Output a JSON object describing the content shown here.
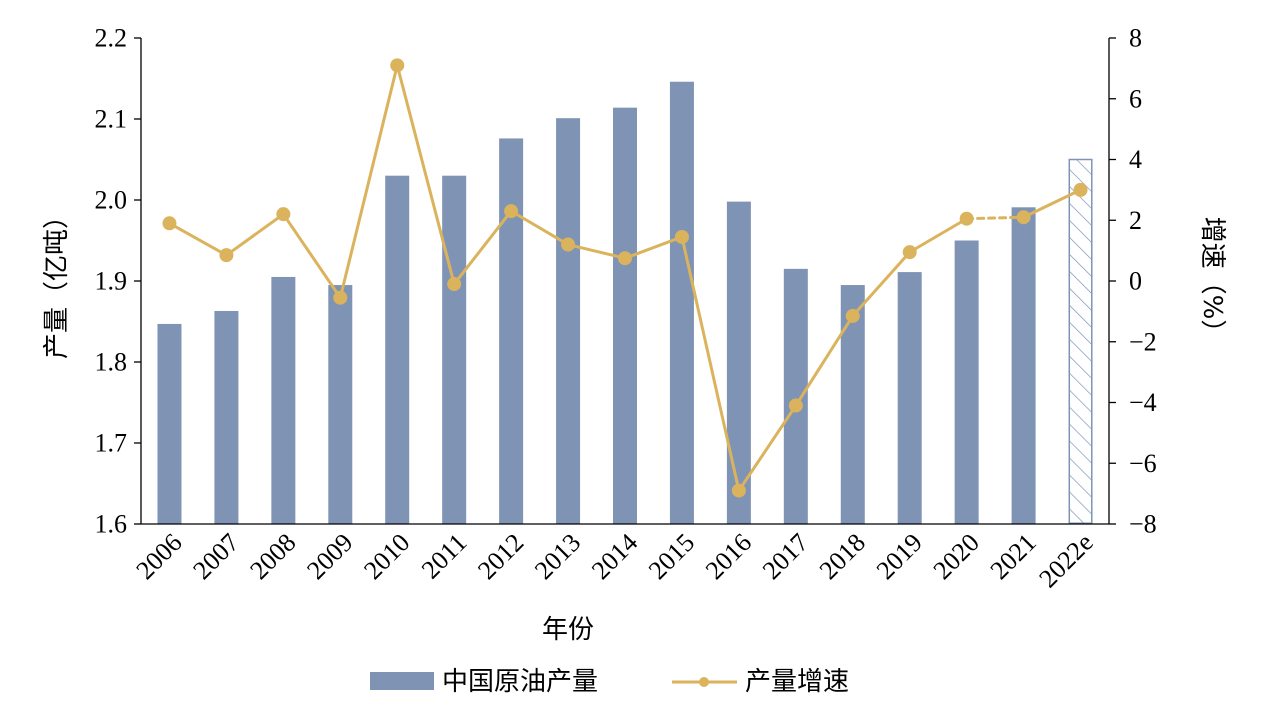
{
  "colors": {
    "bar": "#7f93b5",
    "bar_projection_hatch": "#7f93b5",
    "line": "#dbb35c"
  },
  "chart_data": {
    "type": "bar",
    "categories": [
      "2006",
      "2007",
      "2008",
      "2009",
      "2010",
      "2011",
      "2012",
      "2013",
      "2014",
      "2015",
      "2016",
      "2017",
      "2018",
      "2019",
      "2020",
      "2021",
      "2022e"
    ],
    "xlabel": "年份",
    "ylabel": "产量（亿吨）",
    "y2label": "增速（%）",
    "ylim": [
      1.6,
      2.2
    ],
    "yticks": [
      "1.6",
      "1.7",
      "1.8",
      "1.9",
      "2.0",
      "2.1",
      "2.2"
    ],
    "y2lim": [
      -8,
      8
    ],
    "y2ticks": [
      "−8",
      "−6",
      "−4",
      "−2",
      "0",
      "2",
      "4",
      "6",
      "8"
    ],
    "grid": false,
    "legend_position": "bottom",
    "series": [
      {
        "name": "中国原油产量",
        "type": "bar",
        "axis": "left",
        "values": [
          1.847,
          1.863,
          1.905,
          1.895,
          2.03,
          2.03,
          2.076,
          2.101,
          2.114,
          2.146,
          1.998,
          1.915,
          1.895,
          1.911,
          1.95,
          1.991,
          2.05
        ],
        "projected_index": 16
      },
      {
        "name": "产量增速",
        "type": "line",
        "axis": "right",
        "values": [
          1.9,
          0.85,
          2.2,
          -0.55,
          7.1,
          -0.1,
          2.3,
          1.2,
          0.75,
          1.45,
          -6.9,
          -4.1,
          -1.15,
          0.95,
          2.05,
          2.1,
          3.0
        ],
        "dashed_segment": [
          14,
          15
        ]
      }
    ]
  }
}
